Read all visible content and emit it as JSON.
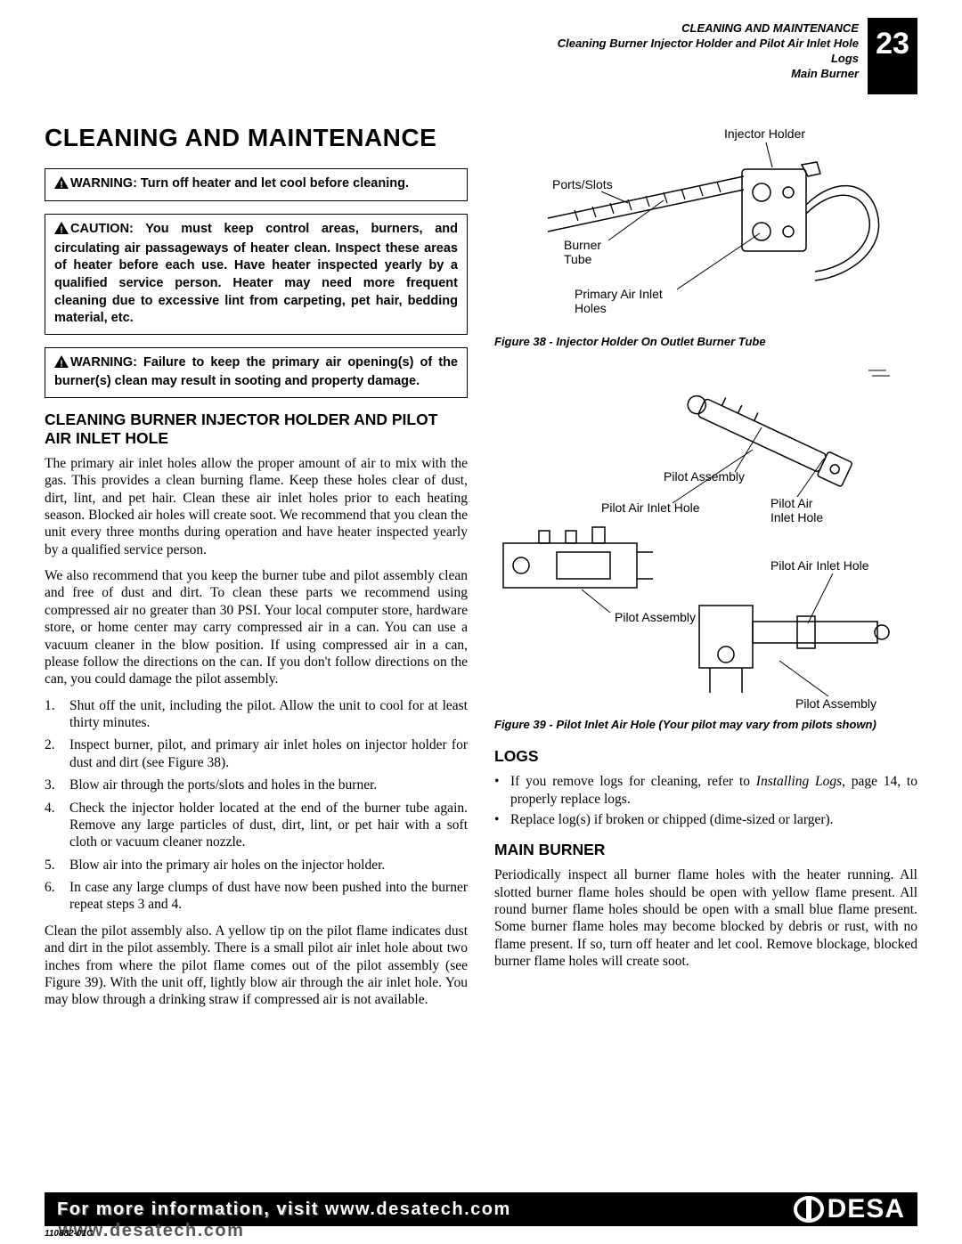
{
  "header": {
    "section_title": "CLEANING AND MAINTENANCE",
    "topics": [
      "Cleaning Burner Injector Holder and Pilot Air Inlet Hole",
      "Logs",
      "Main Burner"
    ],
    "page_number": "23"
  },
  "left": {
    "title": "CLEANING AND MAINTENANCE",
    "warning1": "WARNING: Turn off heater and let cool before cleaning.",
    "caution": "CAUTION: You must keep control areas, burners, and circulating air passageways of heater clean. Inspect these areas of heater before each use. Have heater inspected yearly by a qualified service person. Heater may need more frequent cleaning due to excessive lint from carpeting, pet hair, bedding material, etc.",
    "warning2": "WARNING: Failure to keep the primary air opening(s) of the burner(s) clean may result in sooting and property damage.",
    "subheading": "CLEANING BURNER INJECTOR HOLDER AND PILOT AIR INLET HOLE",
    "para1": "The primary air inlet holes allow the proper amount of air to mix with the gas. This provides a clean burning flame. Keep these holes clear of dust, dirt, lint, and pet hair. Clean these air inlet holes prior to each heating season. Blocked air holes will create soot. We recommend that you clean the unit every three months during operation and have heater inspected yearly by a qualified service person.",
    "para2": "We also recommend that you keep the burner tube and pilot assembly clean and free of dust and dirt. To clean these parts we recommend using compressed air no greater than 30 PSI. Your local computer store, hardware store, or home center may carry compressed air in a can. You can use a vacuum cleaner in the blow position. If using compressed air in a can, please follow the directions on the can. If you don't follow directions on the can, you could damage the pilot assembly.",
    "steps": [
      "Shut off the unit, including the pilot. Allow the unit to cool for at least thirty minutes.",
      "Inspect burner, pilot, and primary air inlet holes on injector holder for dust and dirt (see Figure 38).",
      "Blow air through the ports/slots and holes in the burner.",
      "Check the injector holder located at the end of the burner tube again. Remove any large particles of dust, dirt, lint, or pet hair with a soft cloth or vacuum cleaner nozzle.",
      "Blow air into the primary air holes on the injector holder.",
      "In case any large clumps of dust have now been pushed into the burner repeat steps 3 and 4."
    ],
    "para3": "Clean the pilot assembly also. A yellow tip on the pilot flame indicates dust and dirt in the pilot assembly. There is a small pilot air inlet hole about two inches from where the pilot flame comes out of the pilot assembly (see Figure 39). With the unit off, lightly blow air through the air inlet hole. You may blow through a drinking straw if compressed air is not available."
  },
  "right": {
    "fig38": {
      "labels": {
        "injector_holder": "Injector Holder",
        "ports_slots": "Ports/Slots",
        "burner_tube": "Burner Tube",
        "primary_air": "Primary Air Inlet Holes"
      },
      "caption": "Figure 38 - Injector Holder On Outlet Burner Tube"
    },
    "fig39": {
      "labels": {
        "pilot_assembly": "Pilot Assembly",
        "pilot_air_inlet_hole": "Pilot Air Inlet Hole",
        "pilot_air_inlet_hole2": "Pilot Air Inlet Hole"
      },
      "caption": "Figure 39 - Pilot Inlet Air Hole (Your pilot may vary from pilots shown)"
    },
    "logs_heading": "LOGS",
    "logs_items_html": [
      "If you remove logs for cleaning, refer to <i>Installing Logs</i>, page 14, to properly replace logs.",
      "Replace log(s) if broken or chipped (dime-sized or larger)."
    ],
    "main_burner_heading": "MAIN BURNER",
    "main_burner_text": "Periodically inspect all burner flame holes with the heater running. All slotted burner flame holes should be open with yellow flame present. All round burner flame holes should be open with a small blue flame present. Some burner flame holes may become blocked by debris or rust, with no flame present. If so, turn off heater and let cool. Remove blockage, blocked burner flame holes will create soot."
  },
  "footer": {
    "text": "For more information, visit www.desatech.com",
    "brand": "DESA",
    "doc_code": "110882-01C"
  }
}
